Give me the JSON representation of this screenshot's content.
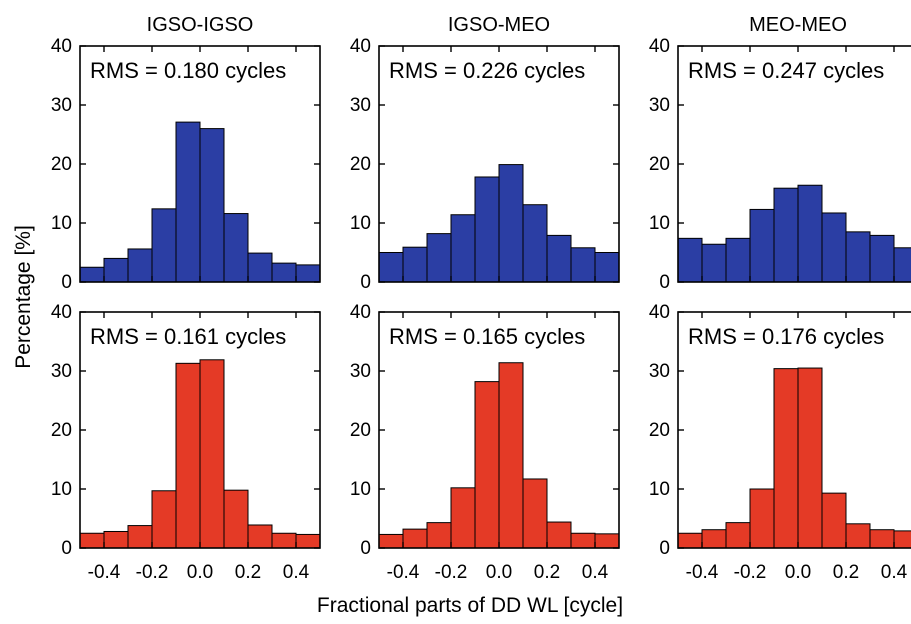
{
  "figure": {
    "ylabel": "Percentage [%]",
    "xlabel": "Fractional parts of DD WL [cycle]"
  },
  "colors": {
    "top_row_bars": "#2b3ea4",
    "bottom_row_bars": "#e43a26",
    "axis": "#000000"
  },
  "chart_data": [
    {
      "type": "bar",
      "title": "IGSO-IGSO",
      "annotation": "RMS = 0.180 cycles",
      "row": "top",
      "bin_width": 0.1,
      "x": [
        -0.45,
        -0.35,
        -0.25,
        -0.15,
        -0.05,
        0.05,
        0.15,
        0.25,
        0.35,
        0.45
      ],
      "values": [
        2.5,
        4.0,
        5.6,
        12.4,
        27.1,
        26.0,
        11.6,
        4.9,
        3.2,
        2.9
      ],
      "xlim": [
        -0.5,
        0.5
      ],
      "ylim": [
        0,
        40
      ],
      "yticks": [
        "0",
        "10",
        "20",
        "30",
        "40"
      ]
    },
    {
      "type": "bar",
      "title": "IGSO-MEO",
      "annotation": "RMS = 0.226 cycles",
      "row": "top",
      "bin_width": 0.1,
      "x": [
        -0.45,
        -0.35,
        -0.25,
        -0.15,
        -0.05,
        0.05,
        0.15,
        0.25,
        0.35,
        0.45
      ],
      "values": [
        5.0,
        5.9,
        8.2,
        11.4,
        17.8,
        19.9,
        13.1,
        7.9,
        5.8,
        5.0
      ],
      "xlim": [
        -0.5,
        0.5
      ],
      "ylim": [
        0,
        40
      ],
      "yticks": [
        "0",
        "10",
        "20",
        "30",
        "40"
      ]
    },
    {
      "type": "bar",
      "title": "MEO-MEO",
      "annotation": "RMS = 0.247 cycles",
      "row": "top",
      "bin_width": 0.1,
      "x": [
        -0.45,
        -0.35,
        -0.25,
        -0.15,
        -0.05,
        0.05,
        0.15,
        0.25,
        0.35,
        0.45
      ],
      "values": [
        7.4,
        6.4,
        7.4,
        12.3,
        15.9,
        16.4,
        11.7,
        8.5,
        7.9,
        5.8
      ],
      "xlim": [
        -0.5,
        0.5
      ],
      "ylim": [
        0,
        40
      ],
      "yticks": [
        "0",
        "10",
        "20",
        "30",
        "40"
      ]
    },
    {
      "type": "bar",
      "annotation": "RMS = 0.161 cycles",
      "row": "bottom",
      "bin_width": 0.1,
      "x": [
        -0.45,
        -0.35,
        -0.25,
        -0.15,
        -0.05,
        0.05,
        0.15,
        0.25,
        0.35,
        0.45
      ],
      "values": [
        2.5,
        2.8,
        3.8,
        9.7,
        31.3,
        31.9,
        9.8,
        3.9,
        2.5,
        2.3
      ],
      "xlim": [
        -0.5,
        0.5
      ],
      "ylim": [
        0,
        40
      ],
      "yticks": [
        "0",
        "10",
        "20",
        "30",
        "40"
      ],
      "xticks": [
        "-0.4",
        "-0.2",
        "0.0",
        "0.2",
        "0.4"
      ]
    },
    {
      "type": "bar",
      "annotation": "RMS = 0.165 cycles",
      "row": "bottom",
      "bin_width": 0.1,
      "x": [
        -0.45,
        -0.35,
        -0.25,
        -0.15,
        -0.05,
        0.05,
        0.15,
        0.25,
        0.35,
        0.45
      ],
      "values": [
        2.3,
        3.2,
        4.3,
        10.2,
        28.2,
        31.4,
        11.7,
        4.4,
        2.5,
        2.4
      ],
      "xlim": [
        -0.5,
        0.5
      ],
      "ylim": [
        0,
        40
      ],
      "yticks": [
        "0",
        "10",
        "20",
        "30",
        "40"
      ],
      "xticks": [
        "-0.4",
        "-0.2",
        "0.0",
        "0.2",
        "0.4"
      ]
    },
    {
      "type": "bar",
      "annotation": "RMS = 0.176 cycles",
      "row": "bottom",
      "bin_width": 0.1,
      "x": [
        -0.45,
        -0.35,
        -0.25,
        -0.15,
        -0.05,
        0.05,
        0.15,
        0.25,
        0.35,
        0.45
      ],
      "values": [
        2.5,
        3.1,
        4.3,
        10.0,
        30.4,
        30.5,
        9.3,
        4.1,
        3.1,
        2.9
      ],
      "xlim": [
        -0.5,
        0.5
      ],
      "ylim": [
        0,
        40
      ],
      "yticks": [
        "0",
        "10",
        "20",
        "30",
        "40"
      ],
      "xticks": [
        "-0.4",
        "-0.2",
        "0.0",
        "0.2",
        "0.4"
      ]
    }
  ]
}
